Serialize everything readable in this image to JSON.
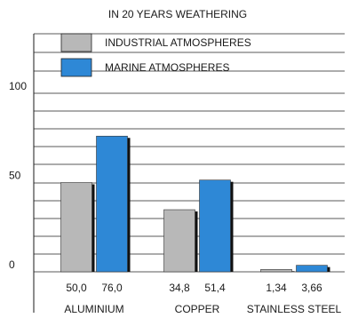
{
  "chart_data": {
    "type": "bar",
    "title": "IN 20 YEARS WEATHERING",
    "categories": [
      "ALUMINIUM",
      "COPPER",
      "STAINLESS STEEL"
    ],
    "series": [
      {
        "name": "INDUSTRIAL ATMOSPHERES",
        "color": "#b8b8b8",
        "values": [
          50.0,
          34.8,
          1.34
        ],
        "labels": [
          "50,0",
          "34,8",
          "1,34"
        ]
      },
      {
        "name": "MARINE ATMOSPHERES",
        "color": "#2e88d6",
        "values": [
          76.0,
          51.4,
          3.66
        ],
        "labels": [
          "76,0",
          "51,4",
          "3,66"
        ]
      }
    ],
    "ylim": [
      0,
      100
    ],
    "yticks": [
      0,
      50,
      100
    ],
    "ytick_labels": [
      "0",
      "50",
      "100"
    ],
    "grid": true,
    "legend_position": "top-left"
  }
}
